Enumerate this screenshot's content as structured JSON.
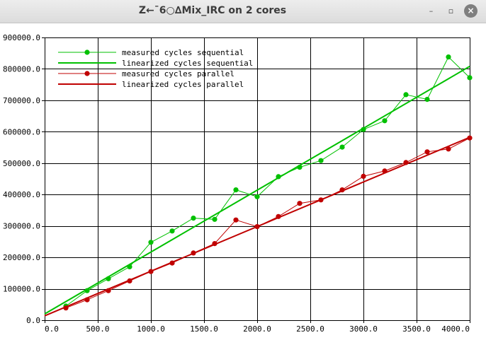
{
  "window": {
    "title": "Z←¯6○∆Mix_IRC on 2 cores",
    "minimize_glyph": "–",
    "maximize_glyph": "▫",
    "close_glyph": "×"
  },
  "chart_data": {
    "type": "line",
    "title": "",
    "xlabel": "",
    "ylabel": "",
    "xlim": [
      0,
      4000
    ],
    "ylim": [
      0,
      900000
    ],
    "x_ticks": [
      0,
      500,
      1000,
      1500,
      2000,
      2500,
      3000,
      3500,
      4000
    ],
    "y_ticks": [
      0,
      100000,
      200000,
      300000,
      400000,
      500000,
      600000,
      700000,
      800000,
      900000
    ],
    "x_tick_labels": [
      "0.0",
      "500.0",
      "1000.0",
      "1500.0",
      "2000.0",
      "2500.0",
      "3000.0",
      "3500.0",
      "4000.0"
    ],
    "y_tick_labels": [
      "0.0",
      "100000.0",
      "200000.0",
      "300000.0",
      "400000.0",
      "500000.0",
      "600000.0",
      "700000.0",
      "800000.0",
      "900000.0"
    ],
    "grid": true,
    "legend_position": "top-left",
    "series": [
      {
        "name": "measured cycles sequential",
        "kind": "measured",
        "color": "#00c000",
        "x": [
          200,
          400,
          600,
          800,
          1000,
          1200,
          1400,
          1600,
          1800,
          2000,
          2200,
          2400,
          2600,
          2800,
          3000,
          3200,
          3400,
          3600,
          3800,
          4000
        ],
        "y": [
          45000,
          94000,
          132000,
          170000,
          248000,
          284000,
          325000,
          321000,
          415000,
          393000,
          457000,
          487000,
          508000,
          551000,
          607000,
          635000,
          718000,
          703000,
          838000,
          772000
        ]
      },
      {
        "name": "linearized cycles sequential",
        "kind": "linear",
        "color": "#00c000",
        "x": [
          0,
          4000
        ],
        "y": [
          20000,
          808000
        ]
      },
      {
        "name": "measured cycles parallel",
        "kind": "measured",
        "color": "#c00000",
        "x": [
          200,
          400,
          600,
          800,
          1000,
          1200,
          1400,
          1600,
          1800,
          2000,
          2200,
          2400,
          2600,
          2800,
          3000,
          3200,
          3400,
          3600,
          3800,
          4000
        ],
        "y": [
          39000,
          65000,
          94000,
          125000,
          155000,
          182000,
          214000,
          244000,
          319000,
          298000,
          330000,
          372000,
          383000,
          415000,
          458000,
          475000,
          502000,
          536000,
          545000,
          580000
        ]
      },
      {
        "name": "linearized cycles parallel",
        "kind": "linear",
        "color": "#c00000",
        "x": [
          0,
          4000
        ],
        "y": [
          14000,
          582000
        ]
      }
    ]
  }
}
